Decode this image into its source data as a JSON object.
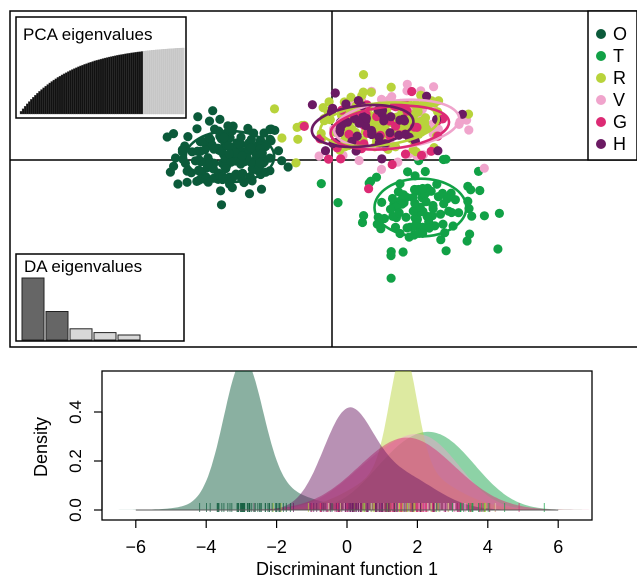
{
  "colors": {
    "O": "#0b5a3a",
    "T": "#11a146",
    "R": "#b8d33b",
    "V": "#f0a4cc",
    "G": "#dc2a74",
    "H": "#6b1a63",
    "bar_dark": "#666666",
    "bar_light": "#d8d8d8"
  },
  "chart_data": [
    {
      "type": "scatter",
      "legend": [
        "O",
        "T",
        "R",
        "V",
        "G",
        "H"
      ],
      "legend_position": "top-right",
      "groups": [
        {
          "name": "O",
          "center": [
            -3.0,
            0.1
          ],
          "n": 170,
          "ellipse_radii": [
            1.3,
            0.75
          ]
        },
        {
          "name": "T",
          "center": [
            2.6,
            -1.4
          ],
          "n": 110,
          "ellipse_radii": [
            1.35,
            0.85
          ]
        },
        {
          "name": "R",
          "center": [
            1.4,
            1.05
          ],
          "n": 150,
          "ellipse_radii": [
            1.75,
            0.62
          ]
        },
        {
          "name": "V",
          "center": [
            1.9,
            1.05
          ],
          "n": 55,
          "ellipse_radii": [
            1.85,
            0.7
          ]
        },
        {
          "name": "G",
          "center": [
            1.7,
            0.95
          ],
          "n": 45,
          "ellipse_radii": [
            1.75,
            0.62
          ]
        },
        {
          "name": "H",
          "center": [
            0.9,
            1.0
          ],
          "n": 50,
          "ellipse_radii": [
            1.5,
            0.6
          ]
        }
      ],
      "inset_pca": {
        "title": "PCA eigenvalues",
        "retained_fraction": 0.75
      },
      "inset_da": {
        "title": "DA eigenvalues",
        "values": [
          1.0,
          0.46,
          0.18,
          0.12,
          0.08
        ],
        "retained": 2
      }
    },
    {
      "type": "area",
      "xlabel": "Discriminant function 1",
      "ylabel": "Density",
      "xlim": [
        -7,
        7
      ],
      "ylim": [
        0,
        0.55
      ],
      "x_ticks": [
        -6,
        -4,
        -2,
        0,
        2,
        4,
        6
      ],
      "y_ticks": [
        0.0,
        0.2,
        0.4
      ],
      "series": [
        {
          "name": "O",
          "components": [
            {
              "w": 0.75,
              "mu": -2.95,
              "sd": 0.55
            },
            {
              "w": 0.25,
              "mu": -2.3,
              "sd": 1.2
            }
          ]
        },
        {
          "name": "T",
          "components": [
            {
              "w": 0.7,
              "mu": 2.7,
              "sd": 1.05
            },
            {
              "w": 0.3,
              "mu": 1.3,
              "sd": 0.9
            }
          ]
        },
        {
          "name": "R",
          "components": [
            {
              "w": 0.45,
              "mu": 1.6,
              "sd": 0.38
            },
            {
              "w": 0.55,
              "mu": 1.6,
              "sd": 1.25
            }
          ]
        },
        {
          "name": "V",
          "components": [
            {
              "w": 0.55,
              "mu": 2.4,
              "sd": 0.95
            },
            {
              "w": 0.45,
              "mu": 0.9,
              "sd": 1.05
            }
          ]
        },
        {
          "name": "G",
          "components": [
            {
              "w": 1.0,
              "mu": 1.7,
              "sd": 1.35
            }
          ]
        },
        {
          "name": "H",
          "components": [
            {
              "w": 0.65,
              "mu": 0.0,
              "sd": 0.7
            },
            {
              "w": 0.35,
              "mu": 1.5,
              "sd": 1.0
            }
          ]
        }
      ]
    }
  ]
}
